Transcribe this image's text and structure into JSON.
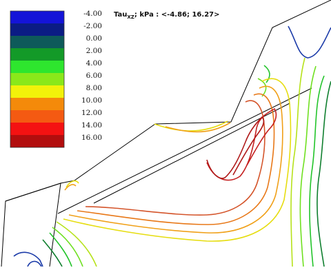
{
  "title": {
    "prefix": "Tau",
    "subscript": "XZ",
    "suffix": "; kPa  : <-4.86; 16.27>"
  },
  "legend": [
    {
      "label": "-4.00",
      "color": "#1414d8"
    },
    {
      "label": "-2.00",
      "color": "#0b1c84"
    },
    {
      "label": "0.00",
      "color": "#0e5a5a"
    },
    {
      "label": "2.00",
      "color": "#139a28"
    },
    {
      "label": "4.00",
      "color": "#2ee62e"
    },
    {
      "label": "6.00",
      "color": "#8ae81a"
    },
    {
      "label": "8.00",
      "color": "#f2f20a"
    },
    {
      "label": "10.00",
      "color": "#f48a0a"
    },
    {
      "label": "12.00",
      "color": "#f45a12"
    },
    {
      "label": "14.00",
      "color": "#f41212"
    },
    {
      "label": "16.00",
      "color": "#b20e0e"
    }
  ],
  "contour_palette": {
    "blue": "#1a3aa8",
    "darkgreen": "#0f7f2e",
    "green": "#22c42a",
    "lightgreen": "#6fe020",
    "yellowgreen": "#b6e21a",
    "yellow": "#e6dd10",
    "orange": "#f0a018",
    "darkorange": "#e87818",
    "redorange": "#d4542a",
    "red": "#c42020",
    "darkred": "#b01a1a"
  }
}
